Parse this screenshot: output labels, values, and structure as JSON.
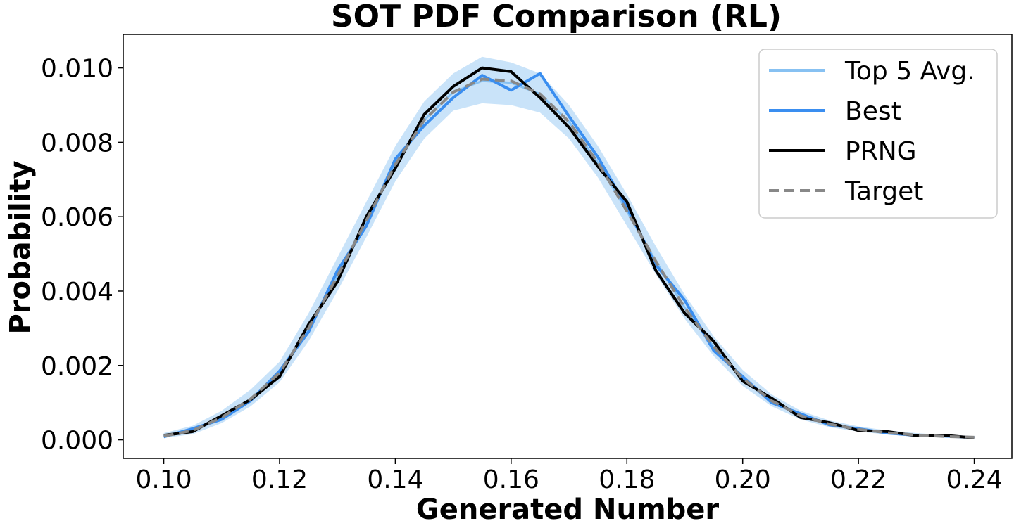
{
  "chart_data": {
    "type": "line",
    "title": "SOT PDF Comparison (RL)",
    "xlabel": "Generated Number",
    "ylabel": "Probability",
    "xlim": [
      0.093,
      0.2465
    ],
    "ylim": [
      -0.0005,
      0.0109
    ],
    "xticks": [
      0.1,
      0.12,
      0.14,
      0.16,
      0.18,
      0.2,
      0.22,
      0.24
    ],
    "xtick_labels": [
      "0.10",
      "0.12",
      "0.14",
      "0.16",
      "0.18",
      "0.20",
      "0.22",
      "0.24"
    ],
    "yticks": [
      0.0,
      0.002,
      0.004,
      0.006,
      0.008,
      0.01
    ],
    "ytick_labels": [
      "0.000",
      "0.002",
      "0.004",
      "0.006",
      "0.008",
      "0.010"
    ],
    "grid": false,
    "legend_position": "top-right",
    "x": [
      0.1,
      0.105,
      0.11,
      0.115,
      0.12,
      0.125,
      0.13,
      0.135,
      0.14,
      0.145,
      0.15,
      0.155,
      0.16,
      0.165,
      0.17,
      0.175,
      0.18,
      0.185,
      0.19,
      0.195,
      0.2,
      0.205,
      0.21,
      0.215,
      0.22,
      0.225,
      0.23,
      0.235,
      0.24
    ],
    "series": [
      {
        "name": "Top 5 Avg.",
        "color": "#87c1f2",
        "style": "solid",
        "values": [
          0.0001,
          0.00025,
          0.0006,
          0.0011,
          0.0018,
          0.003,
          0.0044,
          0.0059,
          0.0074,
          0.0086,
          0.00935,
          0.00965,
          0.0096,
          0.0093,
          0.00855,
          0.00745,
          0.00615,
          0.0048,
          0.00355,
          0.0025,
          0.00165,
          0.00105,
          0.00065,
          0.00042,
          0.00028,
          0.00019,
          0.00013,
          9e-05,
          7e-05
        ],
        "band_low": [
          5e-05,
          0.00015,
          0.00045,
          0.0009,
          0.00155,
          0.00265,
          0.004,
          0.00545,
          0.00695,
          0.0081,
          0.00885,
          0.00905,
          0.009,
          0.0088,
          0.0081,
          0.00705,
          0.00575,
          0.00445,
          0.00325,
          0.00225,
          0.00145,
          0.0009,
          0.00055,
          0.00034,
          0.00022,
          0.00014,
          9e-05,
          6e-05,
          4e-05
        ],
        "band_high": [
          0.00018,
          0.00038,
          0.00078,
          0.00135,
          0.0021,
          0.0034,
          0.0049,
          0.0064,
          0.0079,
          0.0091,
          0.00985,
          0.0103,
          0.01015,
          0.00985,
          0.009,
          0.0079,
          0.0066,
          0.0052,
          0.0039,
          0.00278,
          0.00188,
          0.00122,
          0.00078,
          0.00052,
          0.00036,
          0.00025,
          0.00018,
          0.00013,
          0.0001
        ]
      },
      {
        "name": "Best",
        "color": "#3a8ef0",
        "style": "solid",
        "values": [
          8e-05,
          0.0003,
          0.00055,
          0.00105,
          0.00185,
          0.0029,
          0.00455,
          0.00575,
          0.00755,
          0.00845,
          0.0092,
          0.0098,
          0.0094,
          0.00985,
          0.0087,
          0.0076,
          0.00625,
          0.0047,
          0.00375,
          0.0024,
          0.0017,
          0.001,
          0.0007,
          0.0004,
          0.0003,
          0.00018,
          0.00012,
          0.0001,
          6e-05
        ]
      },
      {
        "name": "PRNG",
        "color": "#000000",
        "style": "solid",
        "values": [
          0.00012,
          0.00022,
          0.00065,
          0.00108,
          0.0017,
          0.0031,
          0.00425,
          0.006,
          0.0073,
          0.00875,
          0.0095,
          0.01,
          0.0099,
          0.0092,
          0.0084,
          0.00735,
          0.0064,
          0.00455,
          0.0034,
          0.00265,
          0.00158,
          0.00112,
          0.0006,
          0.00046,
          0.00025,
          0.00022,
          0.00011,
          0.00012,
          5e-05
        ]
      },
      {
        "name": "Target",
        "color": "#888888",
        "style": "dashed",
        "values": [
          0.0001,
          0.00025,
          0.0006,
          0.0011,
          0.0018,
          0.003,
          0.0044,
          0.0059,
          0.0074,
          0.0086,
          0.00935,
          0.0097,
          0.00965,
          0.0093,
          0.00855,
          0.00745,
          0.00615,
          0.0048,
          0.00355,
          0.0025,
          0.00165,
          0.00105,
          0.00065,
          0.00042,
          0.00028,
          0.00019,
          0.00013,
          9e-05,
          7e-05
        ]
      }
    ]
  }
}
